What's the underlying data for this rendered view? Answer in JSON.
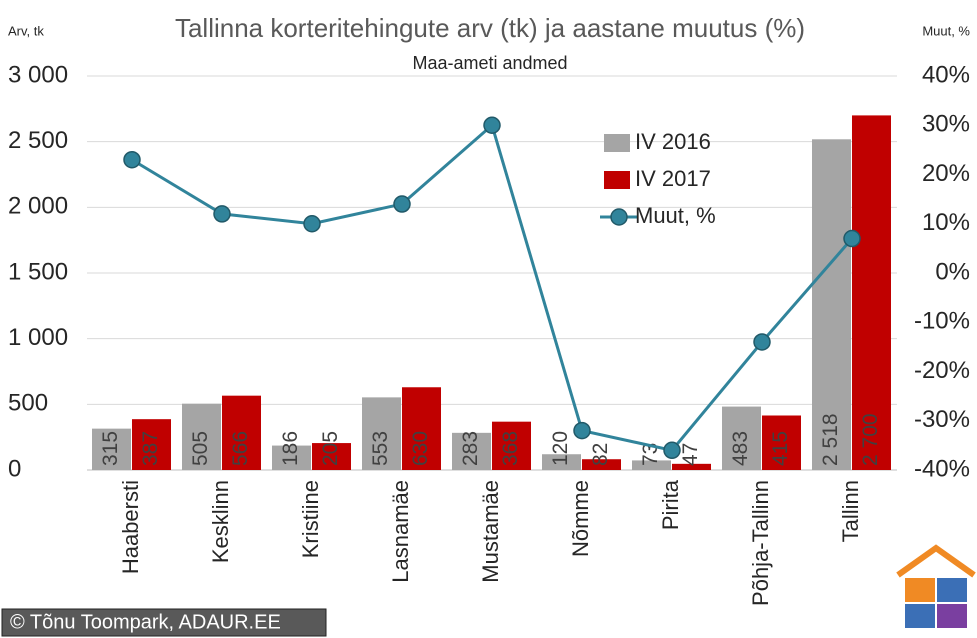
{
  "chart_data": {
    "type": "bar",
    "title": "Tallinna korteritehingute arv (tk) ja aastane muutus (%)",
    "subtitle": "Maa-ameti andmed",
    "y_label": "Arv, tk",
    "y2_label": "Muut, %",
    "credit": "© Tõnu Toompark, ADAUR.EE",
    "categories": [
      "Haabersti",
      "Kesklinn",
      "Kristiine",
      "Lasnamäe",
      "Mustamäe",
      "Nõmme",
      "Pirita",
      "Põhja-Tallinn",
      "Tallinn"
    ],
    "series": [
      {
        "name": "IV 2016",
        "color": "#a5a5a5",
        "values": [
          315,
          505,
          186,
          553,
          283,
          120,
          73,
          483,
          2518
        ],
        "value_labels": [
          "315",
          "505",
          "186",
          "553",
          "283",
          "120",
          "73",
          "483",
          "2 518"
        ]
      },
      {
        "name": "IV 2017",
        "color": "#c00000",
        "values": [
          387,
          566,
          205,
          630,
          368,
          82,
          47,
          415,
          2700
        ],
        "value_labels": [
          "387",
          "566",
          "205",
          "630",
          "368",
          "82",
          "47",
          "415",
          "2 700"
        ]
      },
      {
        "name": "Muut, %",
        "type": "line",
        "axis": "y2",
        "color": "#31849b",
        "values": [
          23,
          12,
          10,
          14,
          30,
          -32,
          -36,
          -14,
          7
        ]
      }
    ],
    "ylim": [
      0,
      3000
    ],
    "yticks": [
      0,
      500,
      {
        "value": 1000,
        "label": "1 000"
      },
      {
        "value": 1500,
        "label": "1 500"
      },
      {
        "value": 2000,
        "label": "2 000"
      },
      {
        "value": 2500,
        "label": "2 500"
      },
      {
        "value": 3000,
        "label": "3 000"
      }
    ],
    "y2lim": [
      -40,
      40
    ],
    "y2ticks": [
      {
        "value": -40,
        "label": "-40%"
      },
      {
        "value": -30,
        "label": "-30%"
      },
      {
        "value": -20,
        "label": "-20%"
      },
      {
        "value": -10,
        "label": "-10%"
      },
      {
        "value": 0,
        "label": "0%"
      },
      {
        "value": 10,
        "label": "10%"
      },
      {
        "value": 20,
        "label": "20%"
      },
      {
        "value": 30,
        "label": "30%"
      },
      {
        "value": 40,
        "label": "40%"
      }
    ],
    "grid": true
  }
}
